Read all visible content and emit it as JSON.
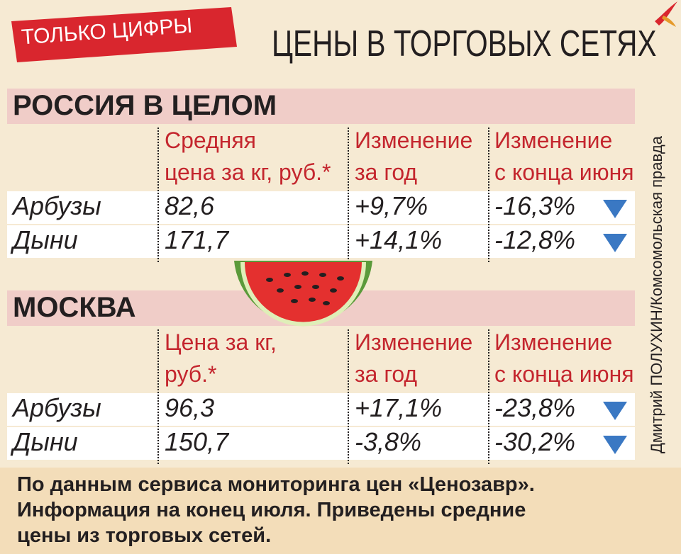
{
  "header": {
    "badge": "ТОЛЬКО ЦИФРЫ",
    "title": "ЦЕНЫ В ТОРГОВЫХ СЕТЯХ",
    "credit": "Дмитрий ПОЛУХИН/Комсомольская правда"
  },
  "sections": [
    {
      "title": "РОССИЯ В ЦЕЛОМ",
      "headers": [
        [
          "Средняя",
          "цена за кг, руб.*"
        ],
        [
          "Изменение",
          "за год"
        ],
        [
          "Изменение",
          "с конца июня"
        ]
      ],
      "rows": [
        [
          "Арбузы",
          "82,6",
          "+9,7%",
          "-16,3%"
        ],
        [
          "Дыни",
          "171,7",
          "+14,1%",
          "-12,8%"
        ]
      ]
    },
    {
      "title": "МОСКВА",
      "headers": [
        [
          "Цена за кг,",
          "руб.*"
        ],
        [
          "Изменение",
          "за год"
        ],
        [
          "Изменение",
          "с конца июня"
        ]
      ],
      "rows": [
        [
          "Арбузы",
          "96,3",
          "+17,1%",
          "-23,8%"
        ],
        [
          "Дыни",
          "150,7",
          "-3,8%",
          "-30,2%"
        ]
      ]
    }
  ],
  "footer": [
    "По данным сервиса мониторинга цен «Ценозавр».",
    "Информация на конец июля. Приведены средние",
    "цены из торговых сетей."
  ]
}
